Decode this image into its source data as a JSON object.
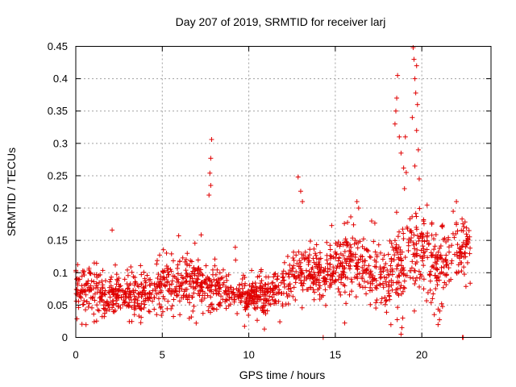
{
  "chart_data": {
    "type": "scatter",
    "title": "Day 207 of 2019, SRMTID for receiver larj",
    "xlabel": "GPS time / hours",
    "ylabel": "SRMTID / TECUs",
    "xlim": [
      0,
      24
    ],
    "ylim": [
      0,
      0.45
    ],
    "xticks": [
      0,
      5,
      10,
      15,
      20
    ],
    "xtick_labels": [
      "0",
      "5",
      "10",
      "15",
      "20"
    ],
    "yticks": [
      0,
      0.05,
      0.1,
      0.15,
      0.2,
      0.25,
      0.3,
      0.35,
      0.4,
      0.45
    ],
    "ytick_labels": [
      "0",
      "0.05",
      "0.1",
      "0.15",
      "0.2",
      "0.25",
      "0.3",
      "0.35",
      "0.4",
      "0.45"
    ],
    "grid": true,
    "marker": "+",
    "color": "#e00000",
    "series": [
      {
        "name": "SRMTID",
        "profile": [
          {
            "x": 0.0,
            "mean": 0.072,
            "spread": 0.025
          },
          {
            "x": 1.0,
            "mean": 0.072,
            "spread": 0.028
          },
          {
            "x": 2.0,
            "mean": 0.068,
            "spread": 0.027
          },
          {
            "x": 3.0,
            "mean": 0.064,
            "spread": 0.025
          },
          {
            "x": 4.0,
            "mean": 0.062,
            "spread": 0.026
          },
          {
            "x": 5.0,
            "mean": 0.08,
            "spread": 0.03
          },
          {
            "x": 6.0,
            "mean": 0.085,
            "spread": 0.03
          },
          {
            "x": 7.0,
            "mean": 0.085,
            "spread": 0.028
          },
          {
            "x": 8.0,
            "mean": 0.08,
            "spread": 0.027
          },
          {
            "x": 9.0,
            "mean": 0.07,
            "spread": 0.022
          },
          {
            "x": 10.0,
            "mean": 0.062,
            "spread": 0.018
          },
          {
            "x": 11.0,
            "mean": 0.065,
            "spread": 0.02
          },
          {
            "x": 12.0,
            "mean": 0.08,
            "spread": 0.025
          },
          {
            "x": 13.0,
            "mean": 0.1,
            "spread": 0.03
          },
          {
            "x": 14.0,
            "mean": 0.1,
            "spread": 0.03
          },
          {
            "x": 15.0,
            "mean": 0.105,
            "spread": 0.03
          },
          {
            "x": 16.0,
            "mean": 0.12,
            "spread": 0.035
          },
          {
            "x": 17.0,
            "mean": 0.1,
            "spread": 0.04
          },
          {
            "x": 18.0,
            "mean": 0.09,
            "spread": 0.04
          },
          {
            "x": 19.0,
            "mean": 0.12,
            "spread": 0.05
          },
          {
            "x": 20.0,
            "mean": 0.13,
            "spread": 0.045
          },
          {
            "x": 21.0,
            "mean": 0.1,
            "spread": 0.04
          },
          {
            "x": 22.0,
            "mean": 0.14,
            "spread": 0.035
          },
          {
            "x": 22.8,
            "mean": 0.13,
            "spread": 0.03
          }
        ],
        "n_points": 1600,
        "peaks": [
          {
            "x": 7.85,
            "y": 0.306
          },
          {
            "x": 7.8,
            "y": 0.277
          },
          {
            "x": 7.75,
            "y": 0.254
          },
          {
            "x": 7.8,
            "y": 0.235
          },
          {
            "x": 7.7,
            "y": 0.22
          },
          {
            "x": 2.1,
            "y": 0.166
          },
          {
            "x": 12.85,
            "y": 0.248
          },
          {
            "x": 13.0,
            "y": 0.226
          },
          {
            "x": 13.1,
            "y": 0.21
          },
          {
            "x": 18.6,
            "y": 0.405
          },
          {
            "x": 18.55,
            "y": 0.37
          },
          {
            "x": 18.5,
            "y": 0.35
          },
          {
            "x": 18.45,
            "y": 0.33
          },
          {
            "x": 18.7,
            "y": 0.31
          },
          {
            "x": 18.8,
            "y": 0.285
          },
          {
            "x": 18.95,
            "y": 0.262
          },
          {
            "x": 19.05,
            "y": 0.31
          },
          {
            "x": 19.1,
            "y": 0.255
          },
          {
            "x": 19.0,
            "y": 0.23
          },
          {
            "x": 19.5,
            "y": 0.448
          },
          {
            "x": 19.55,
            "y": 0.43
          },
          {
            "x": 19.7,
            "y": 0.42
          },
          {
            "x": 19.6,
            "y": 0.4
          },
          {
            "x": 19.65,
            "y": 0.378
          },
          {
            "x": 19.75,
            "y": 0.36
          },
          {
            "x": 19.45,
            "y": 0.34
          },
          {
            "x": 19.7,
            "y": 0.32
          },
          {
            "x": 19.8,
            "y": 0.29
          },
          {
            "x": 19.6,
            "y": 0.265
          },
          {
            "x": 19.85,
            "y": 0.245
          },
          {
            "x": 17.1,
            "y": 0.18
          },
          {
            "x": 16.25,
            "y": 0.21
          },
          {
            "x": 16.35,
            "y": 0.2
          },
          {
            "x": 22.0,
            "y": 0.21
          },
          {
            "x": 14.3,
            "y": 0.0
          },
          {
            "x": 22.35,
            "y": 0.0
          },
          {
            "x": 22.4,
            "y": 0.0
          },
          {
            "x": 18.8,
            "y": 0.005
          },
          {
            "x": 18.85,
            "y": 0.015
          },
          {
            "x": 18.9,
            "y": 0.03
          }
        ]
      }
    ]
  }
}
